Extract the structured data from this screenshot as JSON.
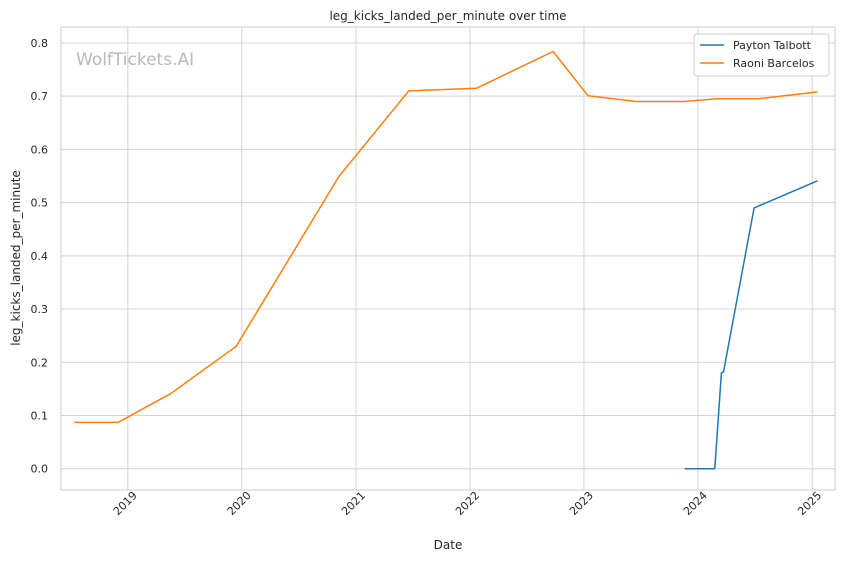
{
  "chart_data": {
    "type": "line",
    "title": "leg_kicks_landed_per_minute over time",
    "xlabel": "Date",
    "ylabel": "leg_kicks_landed_per_minute",
    "watermark": "WolfTickets.AI",
    "x_ticks": [
      "2019",
      "2020",
      "2021",
      "2022",
      "2023",
      "2024",
      "2025"
    ],
    "y_ticks": [
      "0.0",
      "0.1",
      "0.2",
      "0.3",
      "0.4",
      "0.5",
      "0.6",
      "0.7",
      "0.8"
    ],
    "xlim": [
      "2018-06-01",
      "2025-03-15"
    ],
    "ylim": [
      -0.04,
      0.83
    ],
    "grid": true,
    "legend_position": "top-right",
    "series": [
      {
        "name": "Payton Talbott",
        "color": "#1f77b4",
        "points": [
          [
            "2023-11-20",
            0.0
          ],
          [
            "2024-02-24",
            0.0
          ],
          [
            "2024-03-16",
            0.18
          ],
          [
            "2024-03-23",
            0.182
          ],
          [
            "2024-06-29",
            0.49
          ],
          [
            "2025-01-18",
            0.541
          ]
        ]
      },
      {
        "name": "Raoni Barcelos",
        "color": "#ff7f0e",
        "points": [
          [
            "2018-07-14",
            0.087
          ],
          [
            "2018-12-01",
            0.087
          ],
          [
            "2019-05-18",
            0.141
          ],
          [
            "2019-12-14",
            0.23
          ],
          [
            "2020-11-07",
            0.549
          ],
          [
            "2021-06-19",
            0.71
          ],
          [
            "2022-01-22",
            0.715
          ],
          [
            "2022-09-24",
            0.784
          ],
          [
            "2023-01-14",
            0.701
          ],
          [
            "2023-06-17",
            0.69
          ],
          [
            "2023-11-18",
            0.69
          ],
          [
            "2024-03-02",
            0.695
          ],
          [
            "2024-07-13",
            0.695
          ],
          [
            "2025-01-18",
            0.708
          ]
        ]
      }
    ]
  }
}
